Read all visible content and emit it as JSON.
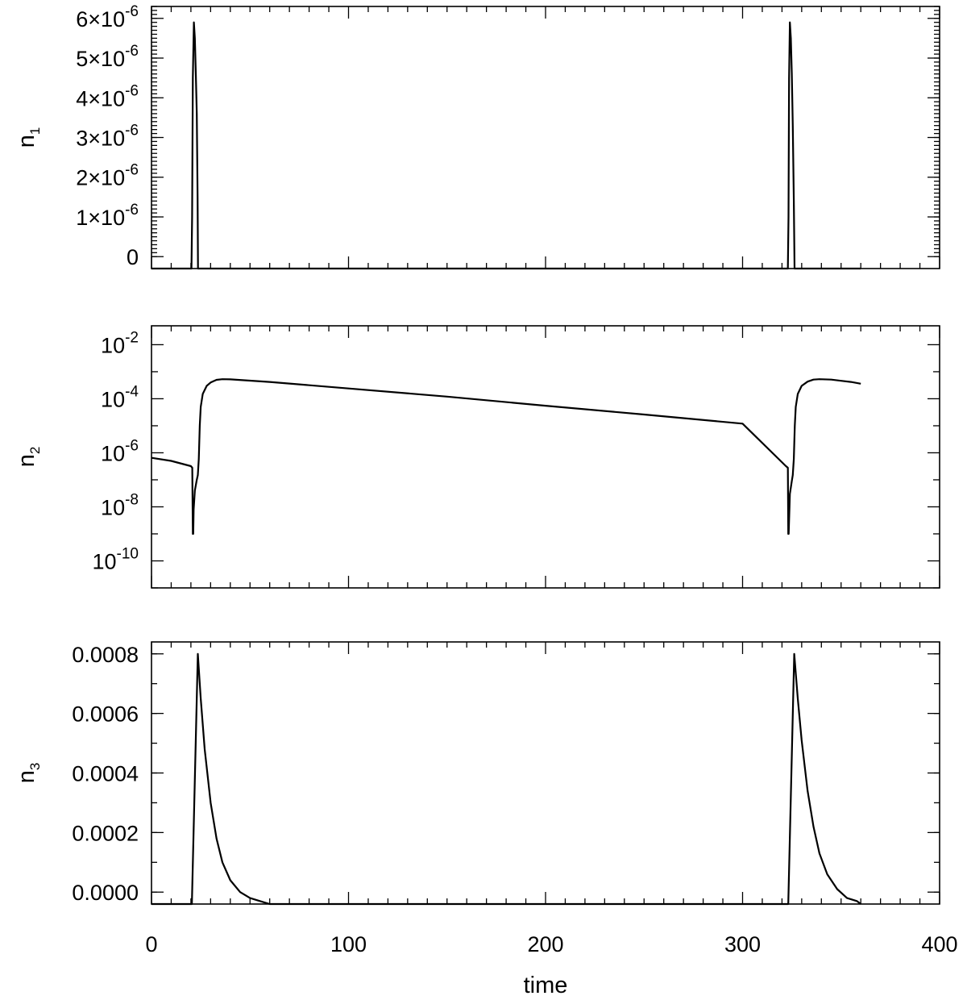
{
  "chart_data": [
    {
      "type": "line",
      "panel": "top",
      "ylabel": "n",
      "ylabel_sub": "1",
      "yscale": "linear",
      "xlim": [
        0,
        400
      ],
      "ylim": [
        -3e-07,
        6.3e-06
      ],
      "yticks": [
        0,
        1e-06,
        2e-06,
        3e-06,
        4e-06,
        5e-06,
        6e-06
      ],
      "ytick_labels": [
        {
          "mant": "0",
          "exp": ""
        },
        {
          "mant": "1×10",
          "exp": "-6"
        },
        {
          "mant": "2×10",
          "exp": "-6"
        },
        {
          "mant": "3×10",
          "exp": "-6"
        },
        {
          "mant": "4×10",
          "exp": "-6"
        },
        {
          "mant": "5×10",
          "exp": "-6"
        },
        {
          "mant": "6×10",
          "exp": "-6"
        }
      ],
      "series": [
        {
          "x": [
            0,
            20.3,
            20.6,
            21.0,
            21.5,
            22.0,
            22.5,
            23.0,
            23.4,
            23.6,
            24.0,
            323,
            323.3,
            323.6,
            324.0,
            324.5,
            325.0,
            325.5,
            326.0,
            326.4,
            326.6,
            327.0,
            360
          ],
          "y": [
            -3e-07,
            -3e-07,
            1e-06,
            4.5e-06,
            5.9e-06,
            5.5e-06,
            4.6e-06,
            3.6e-06,
            1.5e-06,
            -3e-07,
            -3e-07,
            -3e-07,
            1e-06,
            4.5e-06,
            5.9e-06,
            5.5e-06,
            4.6e-06,
            3.3e-06,
            1.4e-06,
            -3e-07,
            -3e-07,
            -3e-07,
            -3e-07
          ]
        }
      ]
    },
    {
      "type": "line",
      "panel": "middle",
      "ylabel": "n",
      "ylabel_sub": "2",
      "yscale": "log",
      "xlim": [
        0,
        400
      ],
      "ylim": [
        1e-11,
        0.05
      ],
      "yticks": [
        1e-10,
        1e-08,
        1e-06,
        0.0001,
        0.01
      ],
      "ytick_labels": [
        {
          "mant": "10",
          "exp": "-10"
        },
        {
          "mant": "10",
          "exp": "-8"
        },
        {
          "mant": "10",
          "exp": "-6"
        },
        {
          "mant": "10",
          "exp": "-4"
        },
        {
          "mant": "10",
          "exp": "-2"
        }
      ],
      "series": [
        {
          "x": [
            0,
            10,
            20,
            20.7,
            21.0,
            21.2,
            21.4,
            22.0,
            23.0,
            23.5,
            24.0,
            24.5,
            25.0,
            26.0,
            28.0,
            30.0,
            33.0,
            36.0,
            40.0,
            60.0,
            100.0,
            150.0,
            200.0,
            250.0,
            300.0,
            322.0,
            323.0,
            323.2,
            323.4,
            324.0,
            325.0,
            325.5,
            326.0,
            326.5,
            327.0,
            328.0,
            330.0,
            333.0,
            336.0,
            339.0,
            345.0,
            350.0,
            355.0,
            360.0
          ],
          "y": [
            6.5e-07,
            5e-07,
            3.2e-07,
            2.8e-07,
            1e-09,
            1e-09,
            8e-09,
            4e-08,
            1e-07,
            1.5e-07,
            6e-07,
            1e-05,
            5e-05,
            0.00015,
            0.0003,
            0.0004,
            0.0005,
            0.00053,
            0.00052,
            0.00042,
            0.00024,
            0.00012,
            5.5e-05,
            2.6e-05,
            1.2e-05,
            3.2e-07,
            2.8e-07,
            1e-09,
            1e-09,
            3e-08,
            9e-08,
            1.5e-07,
            6e-07,
            1e-05,
            5e-05,
            0.00015,
            0.0003,
            0.00043,
            0.00051,
            0.00053,
            0.00051,
            0.00046,
            0.00042,
            0.00036
          ]
        }
      ]
    },
    {
      "type": "line",
      "panel": "bottom",
      "ylabel": "n",
      "ylabel_sub": "3",
      "yscale": "linear",
      "xlim": [
        0,
        400
      ],
      "xlabel": "time",
      "xticks": [
        0,
        100,
        200,
        300,
        400
      ],
      "xtick_labels": [
        "0",
        "100",
        "200",
        "300",
        "400"
      ],
      "ylim": [
        -4e-05,
        0.00084
      ],
      "yticks": [
        0,
        0.0002,
        0.0004,
        0.0006,
        0.0008
      ],
      "ytick_labels": [
        {
          "mant": "0.0000",
          "exp": ""
        },
        {
          "mant": "0.0002",
          "exp": ""
        },
        {
          "mant": "0.0004",
          "exp": ""
        },
        {
          "mant": "0.0006",
          "exp": ""
        },
        {
          "mant": "0.0008",
          "exp": ""
        }
      ],
      "series": [
        {
          "x": [
            0,
            20.5,
            23.5,
            25,
            27,
            30,
            33,
            36,
            40,
            45,
            50,
            55,
            60,
            70,
            323,
            323.2,
            326.2,
            328,
            330,
            333,
            336,
            339,
            343,
            348,
            353,
            358,
            360
          ],
          "y": [
            -4e-05,
            -4e-05,
            0.0008,
            0.00065,
            0.00048,
            0.0003,
            0.00018,
            0.0001,
            4e-05,
            0.0,
            -2e-05,
            -3e-05,
            -4e-05,
            -4e-05,
            -4e-05,
            -4e-05,
            0.0008,
            0.00065,
            0.00051,
            0.00034,
            0.00022,
            0.00013,
            6e-05,
            1e-05,
            -2e-05,
            -3e-05,
            -4e-05
          ]
        }
      ]
    }
  ]
}
